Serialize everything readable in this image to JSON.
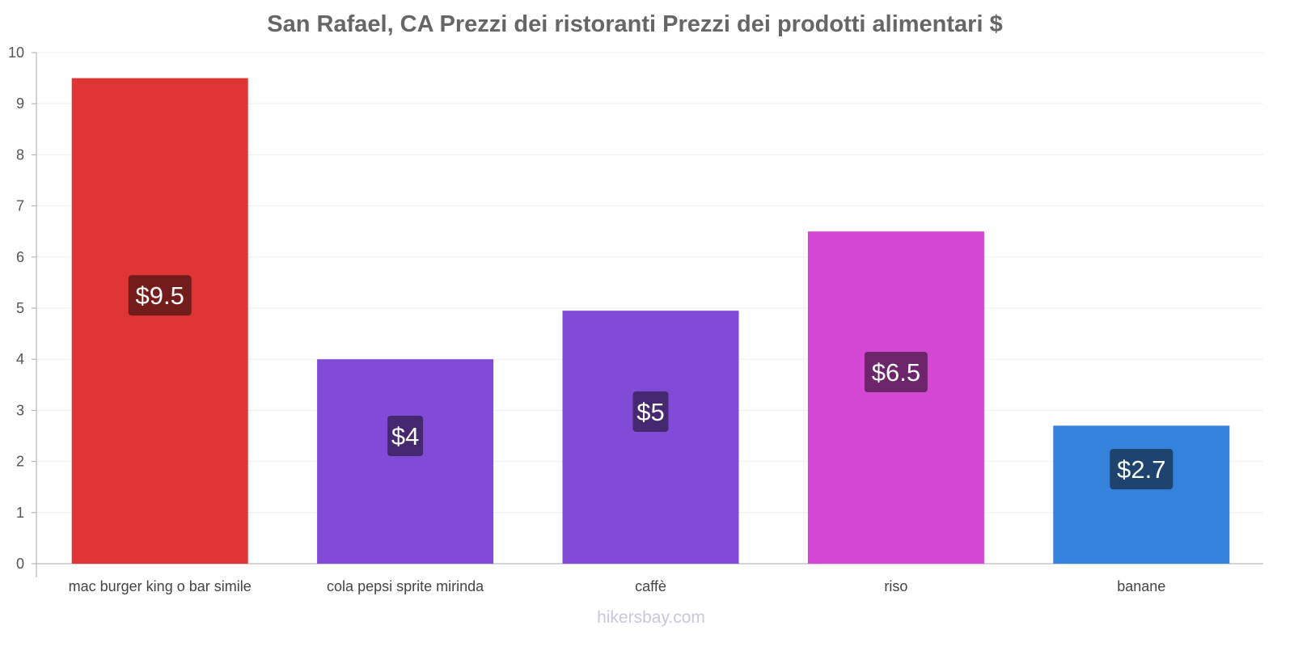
{
  "chart_data": {
    "type": "bar",
    "title": "San Rafael, CA Prezzi dei ristoranti Prezzi dei prodotti alimentari $",
    "categories": [
      "mac burger king o bar simile",
      "cola pepsi sprite mirinda",
      "caffè",
      "riso",
      "banane"
    ],
    "values": [
      9.5,
      4,
      4.95,
      6.5,
      2.7
    ],
    "data_labels": [
      "$9.5",
      "$4",
      "$5",
      "$6.5",
      "$2.7"
    ],
    "colors": [
      "#e03535",
      "#814bd8",
      "#814bd8",
      "#d548d4",
      "#3582dc"
    ],
    "label_colors": [
      "#721c1c",
      "#45286f",
      "#45286f",
      "#6c246b",
      "#1e436f"
    ],
    "ylim": [
      0,
      10
    ],
    "yticks": [
      0,
      1,
      2,
      3,
      4,
      5,
      6,
      7,
      8,
      9,
      10
    ],
    "xlabel": "",
    "ylabel": "",
    "grid": true,
    "legend": "none"
  },
  "footer": "hikersbay.com"
}
